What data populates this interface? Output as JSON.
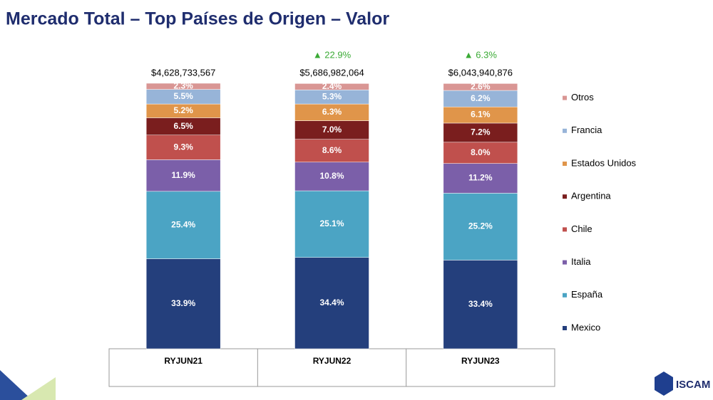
{
  "chart_data": {
    "type": "stacked_bar",
    "title": "Mercado Total – Top Países de Origen – Valor",
    "categories": [
      "RYJUN21",
      "RYJUN22",
      "RYJUN23"
    ],
    "ylim": [
      0,
      100
    ],
    "series": [
      {
        "name": "Mexico",
        "color": "#243f7c",
        "values": [
          33.9,
          34.4,
          33.4
        ],
        "value_labels": [
          "33.9%",
          "34.4%",
          "33.4%"
        ]
      },
      {
        "name": "España",
        "color": "#4ba4c4",
        "values": [
          25.4,
          25.1,
          25.2
        ],
        "value_labels": [
          "25.4%",
          "25.1%",
          "25.2%"
        ]
      },
      {
        "name": "Italia",
        "color": "#7b5fa9",
        "values": [
          11.9,
          10.8,
          11.2
        ],
        "value_labels": [
          "11.9%",
          "10.8%",
          "11.2%"
        ]
      },
      {
        "name": "Chile",
        "color": "#c0504d",
        "values": [
          9.3,
          8.6,
          8.0
        ],
        "value_labels": [
          "9.3%",
          "8.6%",
          "8.0%"
        ]
      },
      {
        "name": "Argentina",
        "color": "#7a1e1e",
        "values": [
          6.5,
          7.0,
          7.2
        ],
        "value_labels": [
          "6.5%",
          "7.0%",
          "7.2%"
        ]
      },
      {
        "name": "Estados Unidos",
        "color": "#e0954a",
        "values": [
          5.2,
          6.3,
          6.1
        ],
        "value_labels": [
          "5.2%",
          "6.3%",
          "6.1%"
        ]
      },
      {
        "name": "Francia",
        "color": "#97b4d8",
        "values": [
          5.5,
          5.3,
          6.2
        ],
        "value_labels": [
          "5.5%",
          "5.3%",
          "6.2%"
        ]
      },
      {
        "name": "Otros",
        "color": "#d99694",
        "values": [
          2.3,
          2.4,
          2.6
        ],
        "value_labels": [
          "2.3%",
          "2.4%",
          "2.6%"
        ]
      }
    ],
    "totals": {
      "values": [
        4628733567,
        5686982064,
        6043940876
      ],
      "value_labels": [
        "$4,628,733,567",
        "$5,686,982,064",
        "$6,043,940,876"
      ]
    },
    "growth": {
      "values": [
        null,
        22.9,
        6.3
      ],
      "value_labels": [
        null,
        "▲ 22.9%",
        "▲ 6.3%"
      ]
    },
    "legend": "right"
  },
  "logo_text": "ISCAM"
}
